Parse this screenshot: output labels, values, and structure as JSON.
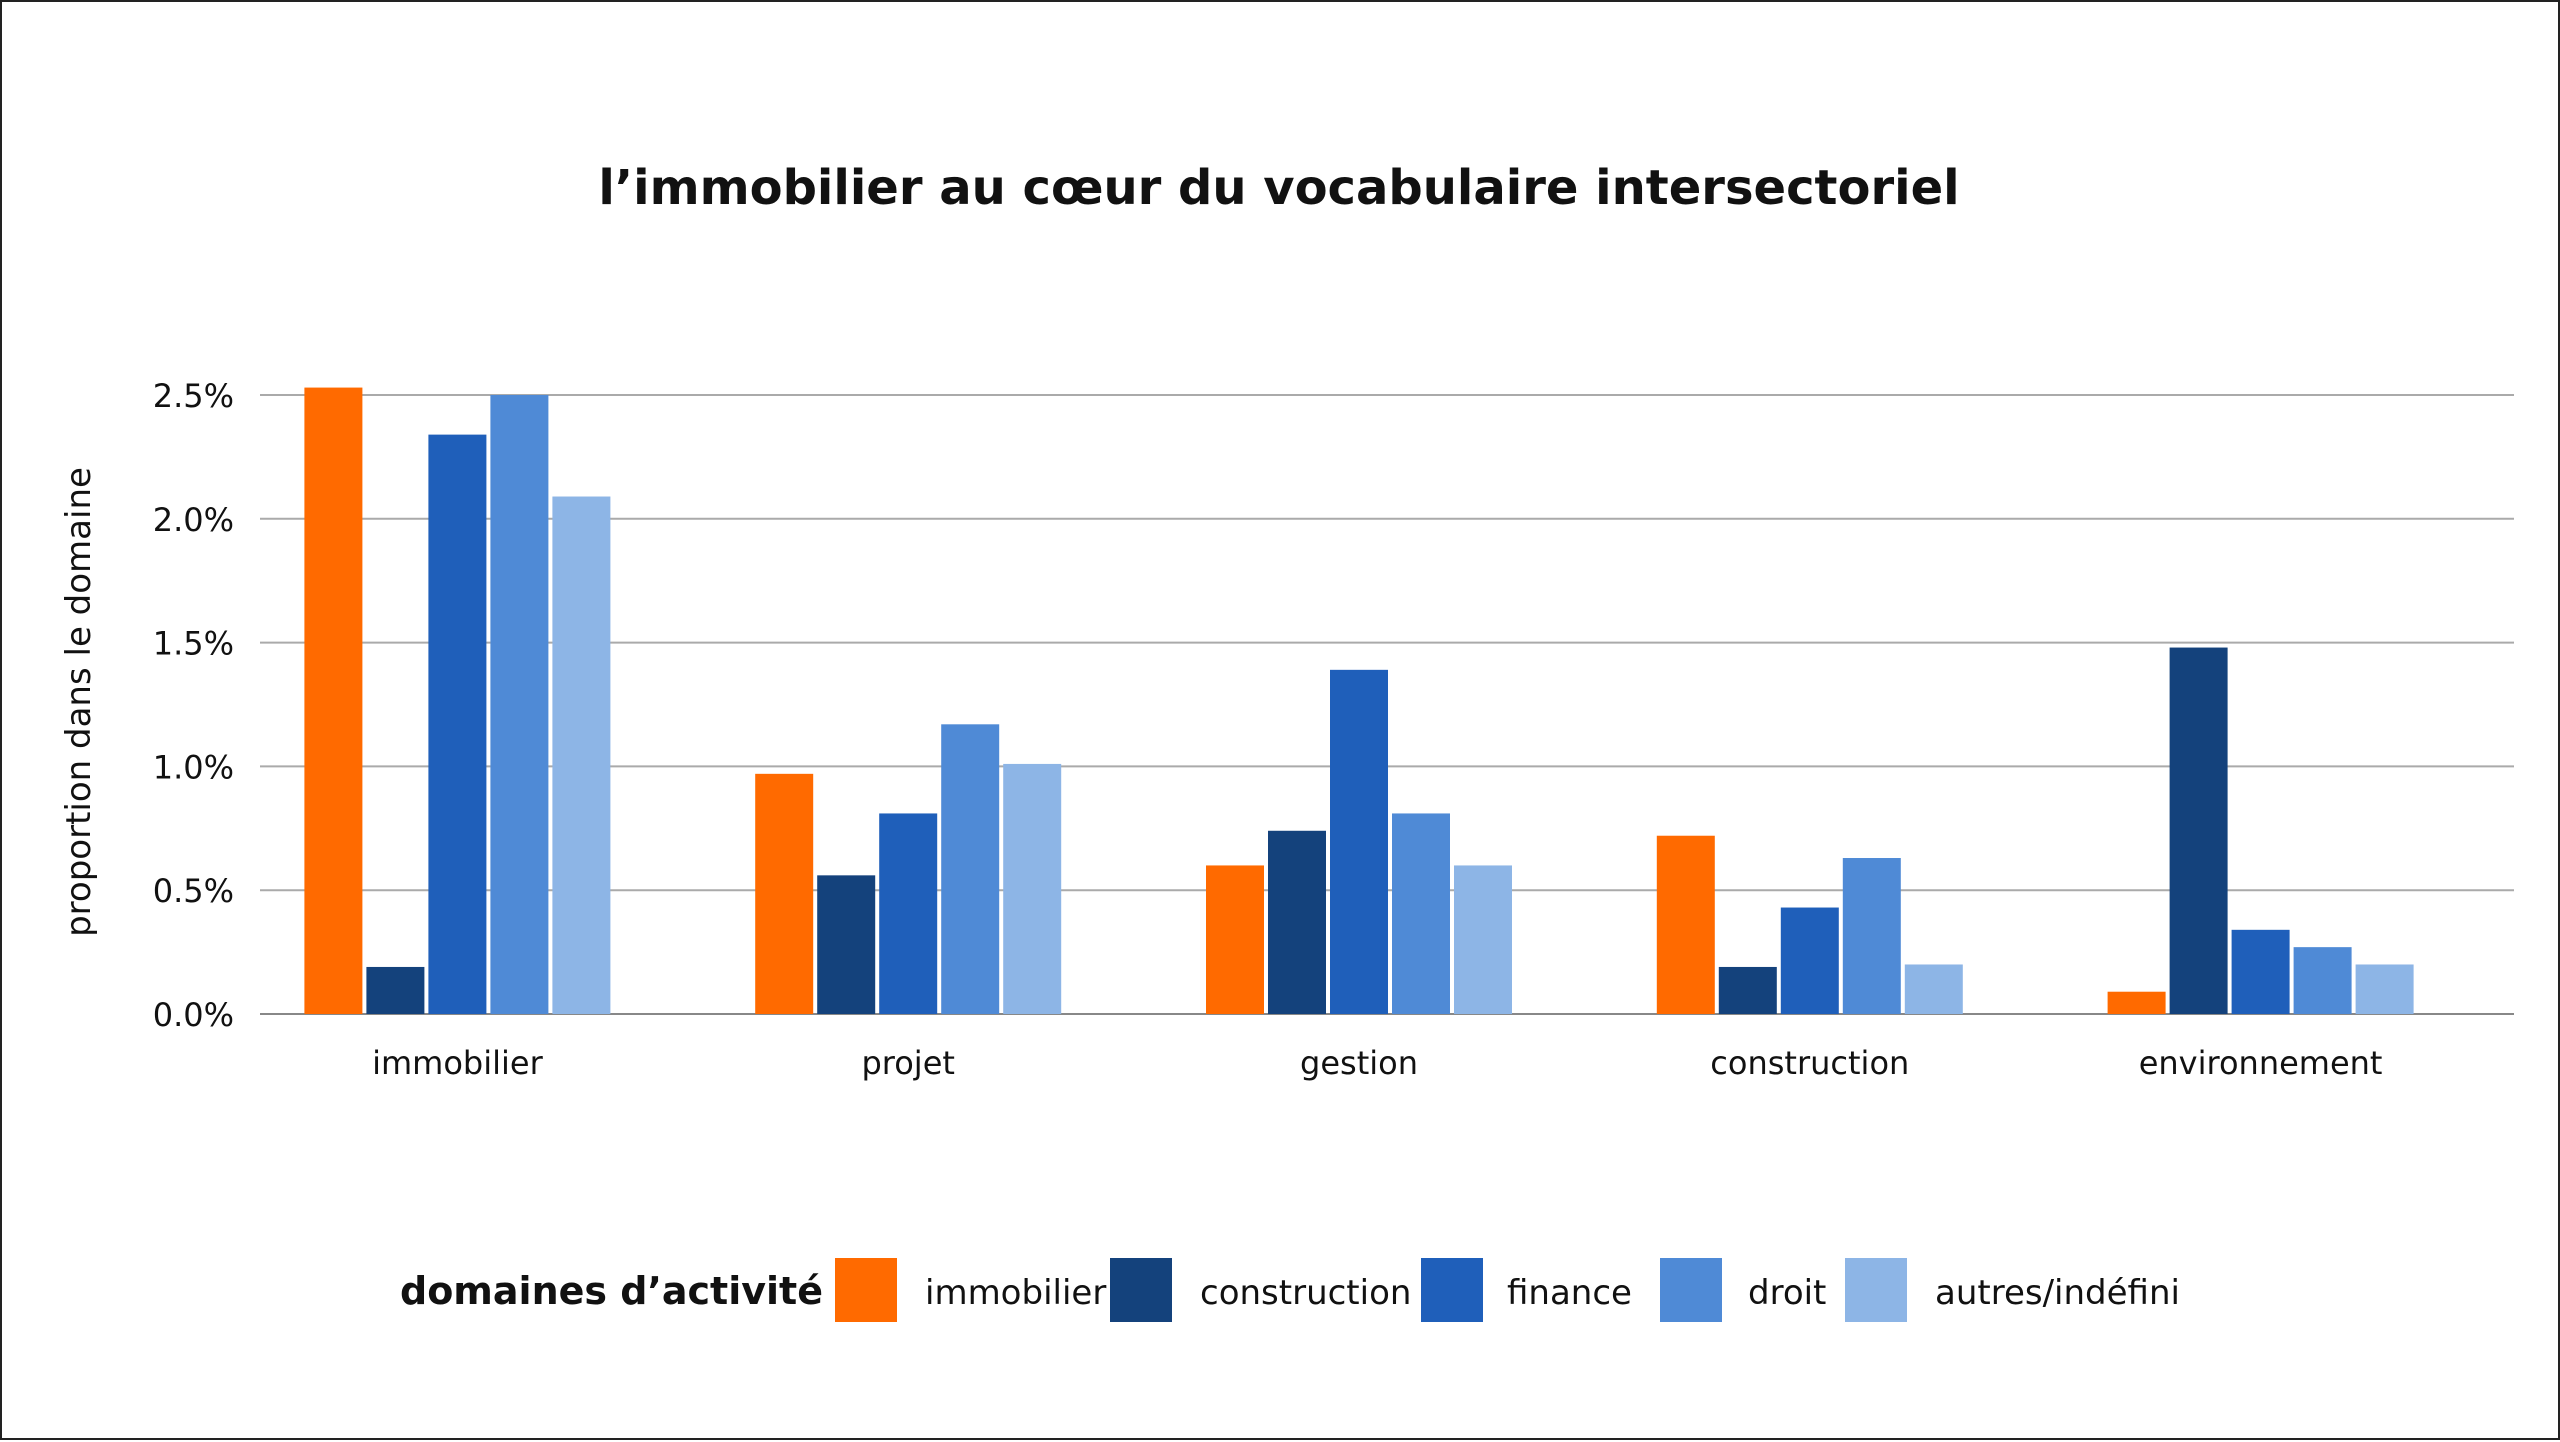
{
  "chart_data": {
    "type": "bar",
    "title": "l’immobilier au cœur du vocabulaire intersectoriel",
    "xlabel": "",
    "ylabel": "proportion dans le domaine",
    "ylim": [
      0,
      2.5
    ],
    "yticks": [
      "0.0%",
      "0.5%",
      "1.0%",
      "1.5%",
      "2.0%",
      "2.5%"
    ],
    "grid": true,
    "legend_position": "bottom",
    "legend_title": "domaines d’activité :",
    "categories": [
      "immobilier",
      "projet",
      "gestion",
      "construction",
      "environnement"
    ],
    "series": [
      {
        "name": "immobilier",
        "color": "#ff6a00",
        "values": [
          2.53,
          0.97,
          0.6,
          0.72,
          0.09
        ]
      },
      {
        "name": "construction",
        "color": "#14427c",
        "values": [
          0.19,
          0.56,
          0.74,
          0.19,
          1.48
        ]
      },
      {
        "name": "finance",
        "color": "#1f5fba",
        "values": [
          2.34,
          0.81,
          1.39,
          0.43,
          0.34
        ]
      },
      {
        "name": "droit",
        "color": "#4f8ad6",
        "values": [
          2.5,
          1.17,
          0.81,
          0.63,
          0.27
        ]
      },
      {
        "name": "autres/indéfini",
        "color": "#8db5e6",
        "values": [
          2.09,
          1.01,
          0.6,
          0.2,
          0.2
        ]
      }
    ]
  }
}
